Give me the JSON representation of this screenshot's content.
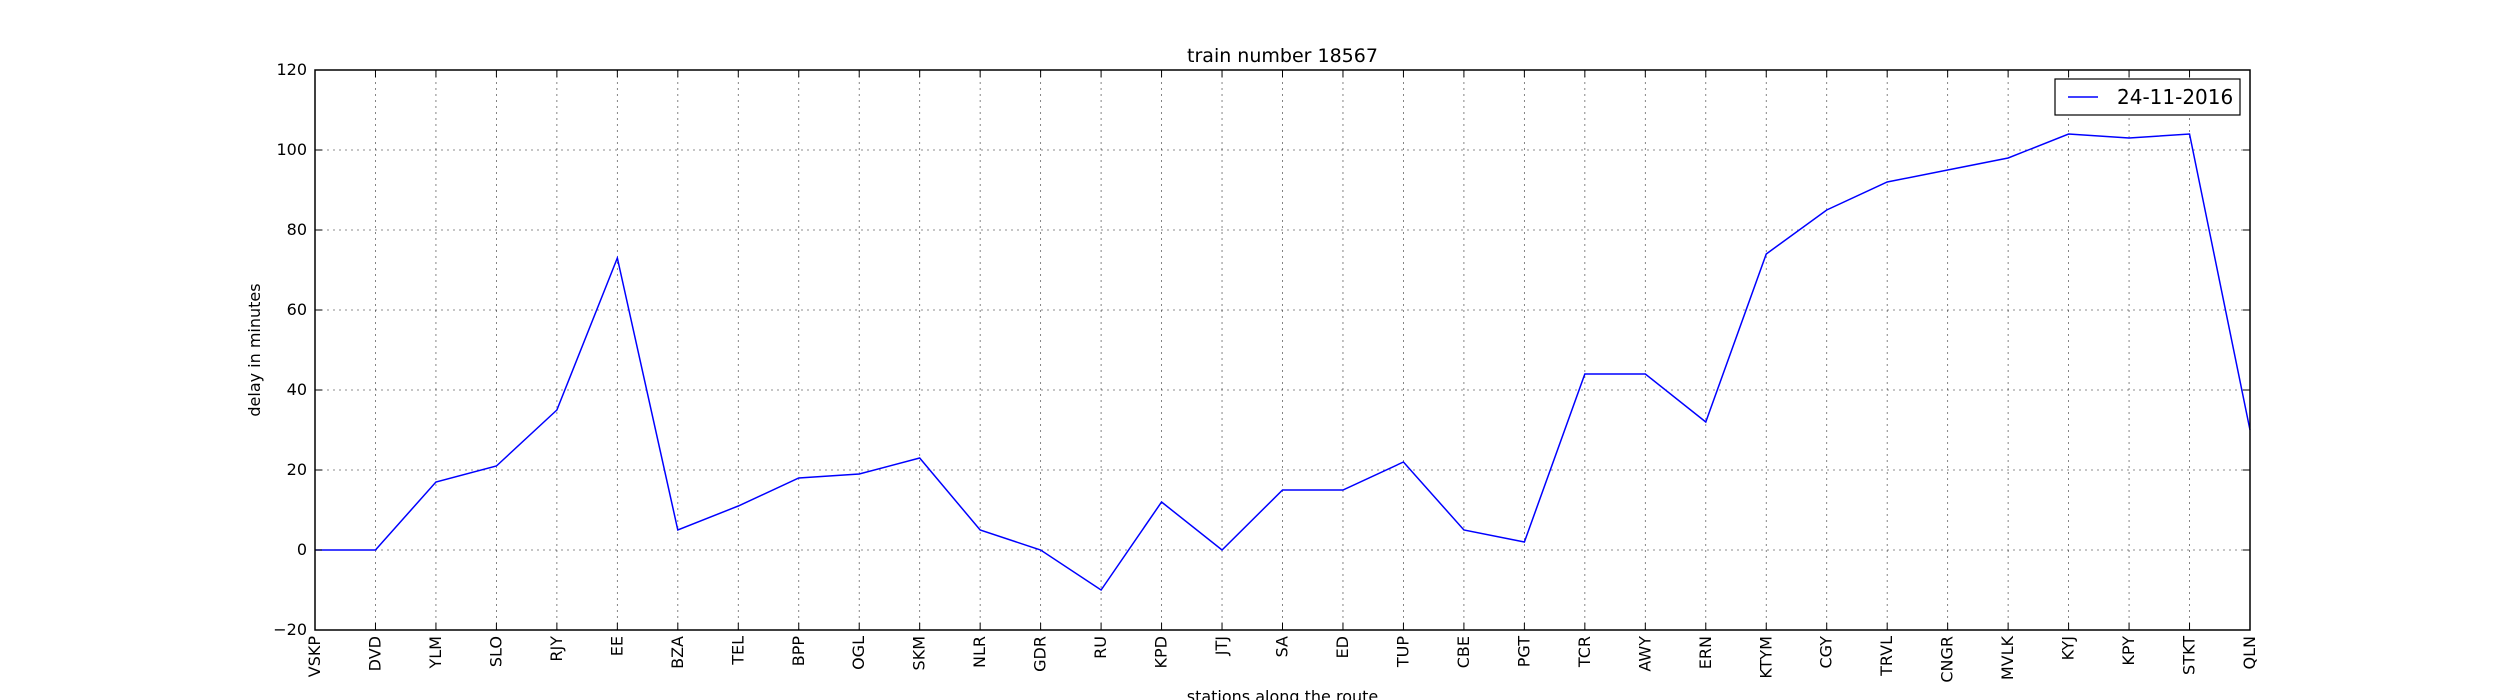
{
  "chart_data": {
    "type": "line",
    "title": "train number 18567",
    "xlabel": "stations along the route",
    "ylabel": "delay in minutes",
    "ylim": [
      -20,
      120
    ],
    "yticks": [
      -20,
      0,
      20,
      40,
      60,
      80,
      100,
      120
    ],
    "grid": true,
    "legend_position": "top-right",
    "categories": [
      "VSKP",
      "DVD",
      "YLM",
      "SLO",
      "RJY",
      "EE",
      "BZA",
      "TEL",
      "BPP",
      "OGL",
      "SKM",
      "NLR",
      "GDR",
      "RU",
      "KPD",
      "JTJ",
      "SA",
      "ED",
      "TUP",
      "CBE",
      "PGT",
      "TCR",
      "AWY",
      "ERN",
      "KTYM",
      "CGY",
      "TRVL",
      "CNGR",
      "MVLK",
      "KYJ",
      "KPY",
      "STKT",
      "QLN"
    ],
    "series": [
      {
        "name": "24-11-2016",
        "color": "#0000ff",
        "values": [
          0,
          0,
          17,
          21,
          35,
          73,
          5,
          11,
          18,
          19,
          23,
          5,
          0,
          -10,
          12,
          0,
          15,
          15,
          22,
          5,
          2,
          44,
          44,
          32,
          74,
          85,
          92,
          95,
          98,
          104,
          103,
          104,
          30
        ]
      }
    ]
  }
}
